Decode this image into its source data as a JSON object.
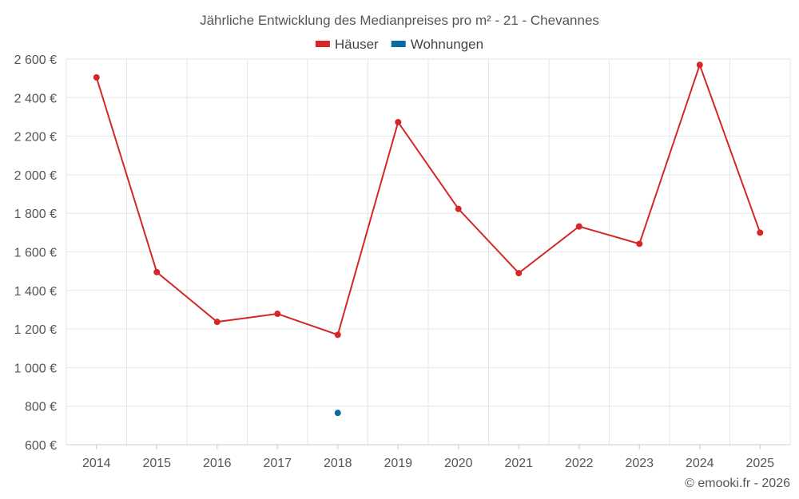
{
  "chart_data": {
    "type": "line",
    "title": "Jährliche Entwicklung des Medianpreises pro m² - 21 - Chevannes",
    "categories": [
      "2014",
      "2015",
      "2016",
      "2017",
      "2018",
      "2019",
      "2020",
      "2021",
      "2022",
      "2023",
      "2024",
      "2025"
    ],
    "series": [
      {
        "name": "Häuser",
        "color": "#d62728",
        "values": [
          2505,
          1495,
          1237,
          1279,
          1170,
          2273,
          1823,
          1490,
          1732,
          1642,
          2570,
          1700
        ]
      },
      {
        "name": "Wohnungen",
        "color": "#0b6aa2",
        "values": [
          null,
          null,
          null,
          null,
          765,
          null,
          null,
          null,
          null,
          null,
          null,
          null
        ]
      }
    ],
    "ylim": [
      600,
      2600
    ],
    "yticks": [
      600,
      800,
      1000,
      1200,
      1400,
      1600,
      1800,
      2000,
      2200,
      2400,
      2600
    ],
    "ytick_labels": [
      "600 €",
      "800 €",
      "1 000 €",
      "1 200 €",
      "1 400 €",
      "1 600 €",
      "1 800 €",
      "2 000 €",
      "2 200 €",
      "2 400 €",
      "2 600 €"
    ],
    "grid": true,
    "legend_position": "top-center"
  },
  "credit": "© emooki.fr - 2026"
}
